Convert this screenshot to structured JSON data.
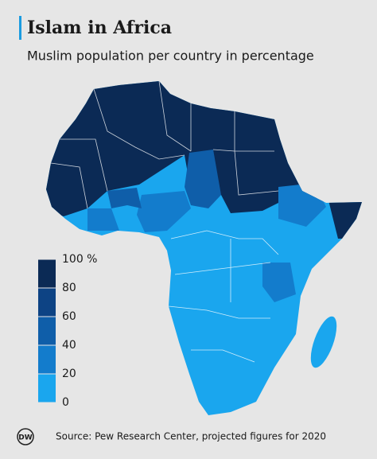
{
  "header": {
    "title": "Islam in Africa",
    "subtitle": "Muslim population per country in percentage"
  },
  "legend": {
    "steps": [
      {
        "value": 100,
        "label": "100 %"
      },
      80,
      60,
      40,
      20,
      0
    ],
    "colors": [
      "#0b2a55",
      "#0d4384",
      "#0f5ea9",
      "#137ccc",
      "#1aa6ee"
    ]
  },
  "footer": {
    "logo": "DW",
    "source": "Source: Pew Research Center, projected figures for 2020"
  }
}
